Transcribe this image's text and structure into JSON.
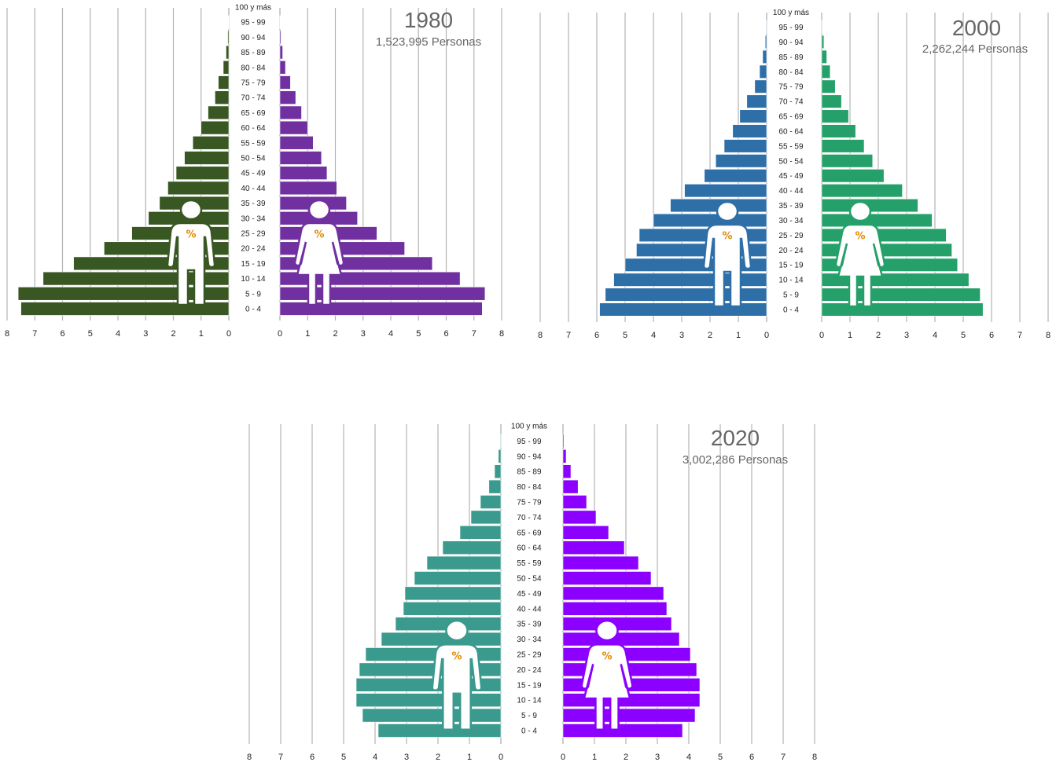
{
  "age_groups": [
    "0 - 4",
    "5 - 9",
    "10 - 14",
    "15 - 19",
    "20 - 24",
    "25 - 29",
    "30 - 34",
    "35 - 39",
    "40 - 44",
    "45 - 49",
    "50 - 54",
    "55 - 59",
    "60 - 64",
    "65 - 69",
    "70 - 74",
    "75 - 79",
    "80 - 84",
    "85 - 89",
    "90 - 94",
    "95 - 99",
    "100 y más"
  ],
  "icons": {
    "male": "man-icon",
    "female": "woman-icon",
    "percent_symbol": "%"
  },
  "chart_data": [
    {
      "type": "bar",
      "orientation": "horizontal-pyramid",
      "year": "1980",
      "population": "1,523,995 Personas",
      "categories": [
        "0 - 4",
        "5 - 9",
        "10 - 14",
        "15 - 19",
        "20 - 24",
        "25 - 29",
        "30 - 34",
        "35 - 39",
        "40 - 44",
        "45 - 49",
        "50 - 54",
        "55 - 59",
        "60 - 64",
        "65 - 69",
        "70 - 74",
        "75 - 79",
        "80 - 84",
        "85 - 89",
        "90 - 94",
        "95 - 99",
        "100 y más"
      ],
      "xlim": [
        0,
        8
      ],
      "ticks": [
        "0",
        "1",
        "2",
        "3",
        "4",
        "5",
        "6",
        "7",
        "8"
      ],
      "grid": true,
      "series": [
        {
          "values": [
            7.5,
            7.6,
            6.7,
            5.6,
            4.5,
            3.5,
            2.9,
            2.5,
            2.2,
            1.9,
            1.6,
            1.3,
            1.0,
            0.75,
            0.5,
            0.38,
            0.2,
            0.1,
            0.04,
            0.01,
            0.0
          ],
          "color": "#385723"
        },
        {
          "values": [
            7.3,
            7.4,
            6.5,
            5.5,
            4.5,
            3.5,
            2.8,
            2.4,
            2.05,
            1.7,
            1.5,
            1.2,
            1.0,
            0.78,
            0.57,
            0.38,
            0.2,
            0.1,
            0.04,
            0.01,
            0.0
          ],
          "color": "#7030a0"
        }
      ]
    },
    {
      "type": "bar",
      "orientation": "horizontal-pyramid",
      "year": "2000",
      "population": "2,262,244 Personas",
      "categories": [
        "0 - 4",
        "5 - 9",
        "10 - 14",
        "15 - 19",
        "20 - 24",
        "25 - 29",
        "30 - 34",
        "35 - 39",
        "40 - 44",
        "45 - 49",
        "50 - 54",
        "55 - 59",
        "60 - 64",
        "65 - 69",
        "70 - 74",
        "75 - 79",
        "80 - 84",
        "85 - 89",
        "90 - 94",
        "95 - 99",
        "100 y más"
      ],
      "xlim": [
        0,
        8
      ],
      "ticks": [
        "0",
        "1",
        "2",
        "3",
        "4",
        "5",
        "6",
        "7",
        "8"
      ],
      "grid": true,
      "series": [
        {
          "values": [
            5.9,
            5.7,
            5.4,
            5.0,
            4.6,
            4.5,
            4.0,
            3.4,
            2.9,
            2.2,
            1.8,
            1.5,
            1.2,
            0.95,
            0.7,
            0.42,
            0.25,
            0.14,
            0.05,
            0.02,
            0.0
          ],
          "color": "#2e6fa8"
        },
        {
          "values": [
            5.7,
            5.6,
            5.2,
            4.8,
            4.6,
            4.4,
            3.9,
            3.4,
            2.85,
            2.2,
            1.8,
            1.5,
            1.2,
            0.95,
            0.7,
            0.48,
            0.3,
            0.18,
            0.08,
            0.02,
            0.0
          ],
          "color": "#26a06a"
        }
      ]
    },
    {
      "type": "bar",
      "orientation": "horizontal-pyramid",
      "year": "2020",
      "population": "3,002,286 Personas",
      "categories": [
        "0 - 4",
        "5 - 9",
        "10 - 14",
        "15 - 19",
        "20 - 24",
        "25 - 29",
        "30 - 34",
        "35 - 39",
        "40 - 44",
        "45 - 49",
        "50 - 54",
        "55 - 59",
        "60 - 64",
        "65 - 69",
        "70 - 74",
        "75 - 79",
        "80 - 84",
        "85 - 89",
        "90 - 94",
        "95 - 99",
        "100 y más"
      ],
      "xlim": [
        0,
        8
      ],
      "ticks": [
        "0",
        "1",
        "2",
        "3",
        "4",
        "5",
        "6",
        "7",
        "8"
      ],
      "grid": true,
      "series": [
        {
          "values": [
            3.9,
            4.4,
            4.6,
            4.6,
            4.5,
            4.3,
            3.8,
            3.35,
            3.1,
            3.05,
            2.75,
            2.35,
            1.85,
            1.3,
            0.95,
            0.65,
            0.38,
            0.2,
            0.08,
            0.02,
            0.0
          ],
          "color": "#3a9a8e"
        },
        {
          "values": [
            3.8,
            4.2,
            4.35,
            4.35,
            4.25,
            4.05,
            3.7,
            3.45,
            3.3,
            3.2,
            2.8,
            2.4,
            1.95,
            1.45,
            1.05,
            0.75,
            0.48,
            0.25,
            0.1,
            0.03,
            0.0
          ],
          "color": "#8b00ff"
        }
      ]
    }
  ]
}
